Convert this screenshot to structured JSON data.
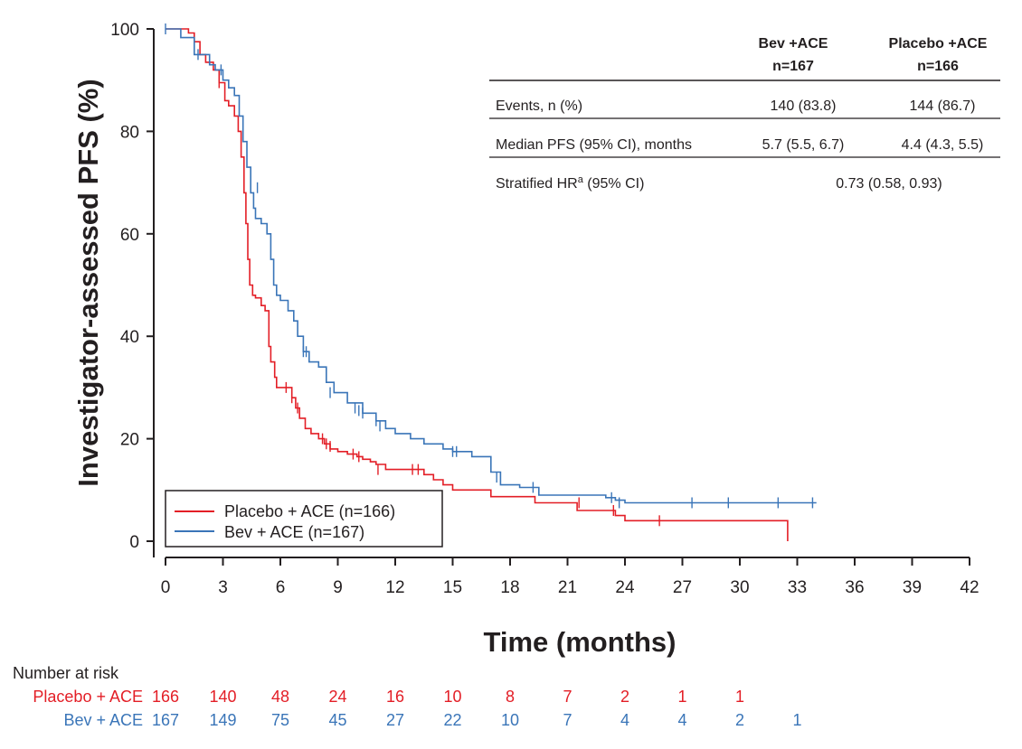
{
  "chart_data": {
    "type": "line",
    "subtype": "kaplan-meier",
    "title": "",
    "xlabel": "Time (months)",
    "ylabel": "Investigator-assessed PFS (%)",
    "xlim": [
      0,
      42
    ],
    "ylim": [
      0,
      100
    ],
    "xticks": [
      "0",
      "3",
      "6",
      "9",
      "12",
      "15",
      "18",
      "21",
      "24",
      "27",
      "30",
      "33",
      "36",
      "39",
      "42"
    ],
    "yticks": [
      "0",
      "20",
      "40",
      "60",
      "80",
      "100"
    ],
    "grid": false,
    "legend_position": "bottom-left",
    "series": [
      {
        "name": "Placebo + ACE (n=166)",
        "color": "#e31e26",
        "x": [
          0,
          1.2,
          1.5,
          1.8,
          2.1,
          2.5,
          2.8,
          3.1,
          3.3,
          3.6,
          3.8,
          3.95,
          4.1,
          4.2,
          4.3,
          4.4,
          4.55,
          4.7,
          5.0,
          5.2,
          5.4,
          5.5,
          5.7,
          5.8,
          6.0,
          6.6,
          6.8,
          7.0,
          7.3,
          7.6,
          8.0,
          8.3,
          8.6,
          9.0,
          9.5,
          10.0,
          10.3,
          10.7,
          11.0,
          11.5,
          12.5,
          13.2,
          13.5,
          14.0,
          14.5,
          15.0,
          17.0,
          19.3,
          21.5,
          23.5,
          24.0,
          32.0,
          32.5
        ],
        "y": [
          100,
          99.2,
          97.5,
          95,
          93.5,
          92,
          89.5,
          86,
          85,
          83,
          80,
          75,
          68,
          62,
          55,
          50,
          48,
          47.5,
          46,
          45,
          38,
          35,
          32,
          30,
          30,
          28,
          26,
          24,
          22,
          21,
          20,
          19,
          18,
          17.5,
          17,
          16.5,
          16,
          15.5,
          15,
          14,
          14,
          14,
          13,
          12,
          11,
          10,
          8.7,
          7.5,
          6,
          5,
          4,
          4,
          0
        ],
        "censor_x": [
          2.8,
          6.3,
          6.6,
          6.9,
          8.2,
          8.4,
          8.6,
          9.8,
          10.1,
          11.1,
          12.9,
          13.2,
          21.6,
          23.4,
          25.8
        ],
        "censor_y": [
          89.5,
          30,
          28,
          26,
          20,
          19,
          18.5,
          17,
          16.5,
          14,
          14,
          14,
          7.5,
          6,
          4
        ]
      },
      {
        "name": "Bev + ACE (n=167)",
        "color": "#3a75b8",
        "x": [
          0,
          0.8,
          1.5,
          2.3,
          2.6,
          3.0,
          3.3,
          3.6,
          3.85,
          4.05,
          4.25,
          4.45,
          4.6,
          4.7,
          5.0,
          5.3,
          5.5,
          5.65,
          5.8,
          6.0,
          6.4,
          6.7,
          6.9,
          7.2,
          7.5,
          8.0,
          8.4,
          8.8,
          9.5,
          10.3,
          11.0,
          11.5,
          12.0,
          12.8,
          13.5,
          14.5,
          15.0,
          16.0,
          17.0,
          17.5,
          18.5,
          19.5,
          20.5,
          21.5,
          23.0,
          23.5,
          24.0,
          34.0
        ],
        "y": [
          100,
          98.3,
          95,
          93,
          92,
          90,
          88.5,
          87,
          83,
          78,
          73,
          68,
          65,
          63,
          62,
          60,
          55,
          50,
          48,
          47,
          45,
          43,
          40,
          37,
          35,
          34,
          31,
          29,
          27,
          25,
          23.5,
          22,
          21,
          20,
          19,
          18,
          17.5,
          16.5,
          13.5,
          11,
          10.5,
          9,
          9,
          9,
          8.5,
          8,
          7.5,
          7.5
        ],
        "censor_x": [
          0,
          1.7,
          2.9,
          4.8,
          7.2,
          7.35,
          8.6,
          9.9,
          10.1,
          10.3,
          11.0,
          11.2,
          15.0,
          15.2,
          17.3,
          19.2,
          23.3,
          23.7,
          27.5,
          29.4,
          32.0,
          33.8
        ],
        "censor_y": [
          100,
          95,
          92,
          69,
          37,
          37,
          29,
          26,
          25.5,
          25,
          23.5,
          22.5,
          17.5,
          17.5,
          12.5,
          10.5,
          8.5,
          7.5,
          7.5,
          7.5,
          7.5,
          7.5
        ]
      }
    ],
    "at_risk": {
      "label": "Number at risk",
      "times": [
        0,
        3,
        6,
        9,
        12,
        15,
        18,
        21,
        24,
        27,
        30,
        33
      ],
      "rows": [
        {
          "name": "Placebo + ACE",
          "color": "#e31e26",
          "values": [
            "166",
            "140",
            "48",
            "24",
            "16",
            "10",
            "8",
            "7",
            "2",
            "1",
            "1"
          ]
        },
        {
          "name": "Bev + ACE",
          "color": "#3a75b8",
          "values": [
            "167",
            "149",
            "75",
            "45",
            "27",
            "22",
            "10",
            "7",
            "4",
            "4",
            "2",
            "1"
          ]
        }
      ]
    }
  },
  "summary_table": {
    "col1_line1": "Bev +ACE",
    "col1_line2": "n=167",
    "col2_line1": "Placebo +ACE",
    "col2_line2": "n=166",
    "rows": [
      {
        "label": "Events, n (%)",
        "v1": "140 (83.8)",
        "v2": "144 (86.7)"
      },
      {
        "label": "Median PFS (95% CI), months",
        "v1": "5.7 (5.5, 6.7)",
        "v2": "4.4 (4.3, 5.5)"
      }
    ],
    "hr_label": "Stratified HR",
    "hr_sup": "a",
    "hr_label_rest": " (95% CI)",
    "hr_value": "0.73 (0.58, 0.93)"
  },
  "colors": {
    "axis": "#231f20",
    "placebo": "#e31e26",
    "bev": "#3a75b8"
  }
}
